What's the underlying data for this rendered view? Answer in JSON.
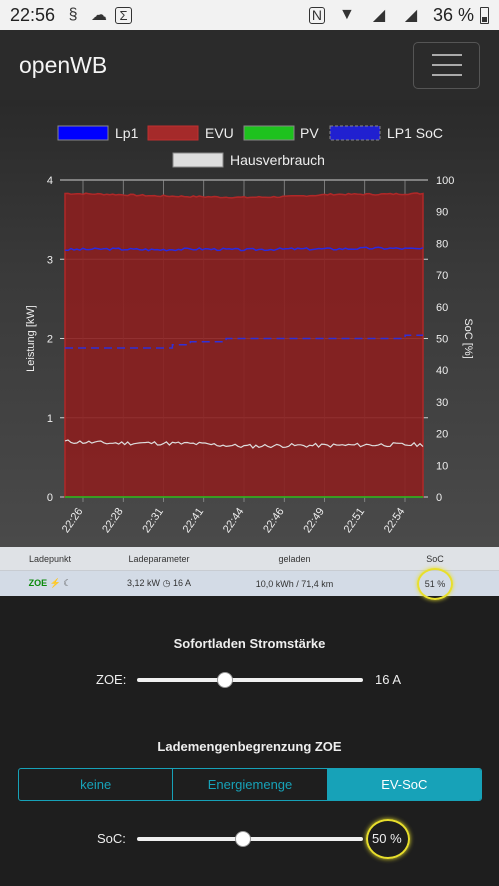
{
  "statusbar": {
    "time": "22:56",
    "battery": "36 %"
  },
  "navbar": {
    "brand": "openWB"
  },
  "chart_data": {
    "type": "line",
    "legend": [
      "Lp1",
      "EVU",
      "PV",
      "LP1 SoC",
      "Hausverbrauch"
    ],
    "legend_placement": "top",
    "colors": {
      "Lp1": "#0000ff",
      "EVU": "#a52a2a",
      "PV": "#1ec21e",
      "LP1 SoC": "#2020d0",
      "Hausverbrauch": "#dddddd"
    },
    "ylabel": "Leistung [kW]",
    "y2label": "SoC [%]",
    "ylim": [
      0,
      4
    ],
    "y2lim": [
      0,
      100
    ],
    "yticks": [
      "0",
      "1",
      "2",
      "3",
      "4"
    ],
    "y2ticks": [
      "0",
      "10",
      "20",
      "30",
      "40",
      "50",
      "60",
      "70",
      "80",
      "90",
      "100"
    ],
    "x": [
      "22:26",
      "22:28",
      "22:31",
      "22:41",
      "22:44",
      "22:46",
      "22:49",
      "22:51",
      "22:54"
    ],
    "series": [
      {
        "name": "EVU",
        "axis": "left",
        "fill": true,
        "values": [
          3.83,
          3.82,
          3.8,
          3.79,
          3.78,
          3.79,
          3.82,
          3.82,
          3.83
        ]
      },
      {
        "name": "Lp1",
        "axis": "left",
        "fill": false,
        "values": [
          3.12,
          3.13,
          3.12,
          3.13,
          3.12,
          3.13,
          3.13,
          3.14,
          3.13
        ]
      },
      {
        "name": "Hausverbrauch",
        "axis": "left",
        "fill": false,
        "values": [
          0.7,
          0.68,
          0.68,
          0.67,
          0.64,
          0.65,
          0.65,
          0.66,
          0.66
        ]
      },
      {
        "name": "PV",
        "axis": "left",
        "fill": false,
        "values": [
          0,
          0,
          0,
          0,
          0,
          0,
          0,
          0,
          0
        ]
      },
      {
        "name": "LP1 SoC",
        "axis": "right",
        "dashed": true,
        "values": [
          47,
          47,
          47,
          49,
          50,
          50,
          50,
          50,
          51
        ]
      }
    ]
  },
  "table": {
    "headers": [
      "Ladepunkt",
      "Ladeparameter",
      "geladen",
      "SoC"
    ],
    "row": {
      "ladepunkt": "ZOE",
      "ladeparameter": "3,12 kW",
      "ampere": "16 A",
      "geladen": "10,0 kWh / 71,4 km",
      "soc": "51 %"
    }
  },
  "sofortladen": {
    "title": "Sofortladen Stromstärke",
    "label": "ZOE:",
    "value": "16 A",
    "fraction": 0.39
  },
  "lademenge": {
    "title": "Lademengenbegrenzung ZOE",
    "options": [
      "keine",
      "Energiemenge",
      "EV-SoC"
    ],
    "active": "EV-SoC",
    "soc_label": "SoC:",
    "soc_value": "50 %",
    "soc_fraction": 0.47
  }
}
